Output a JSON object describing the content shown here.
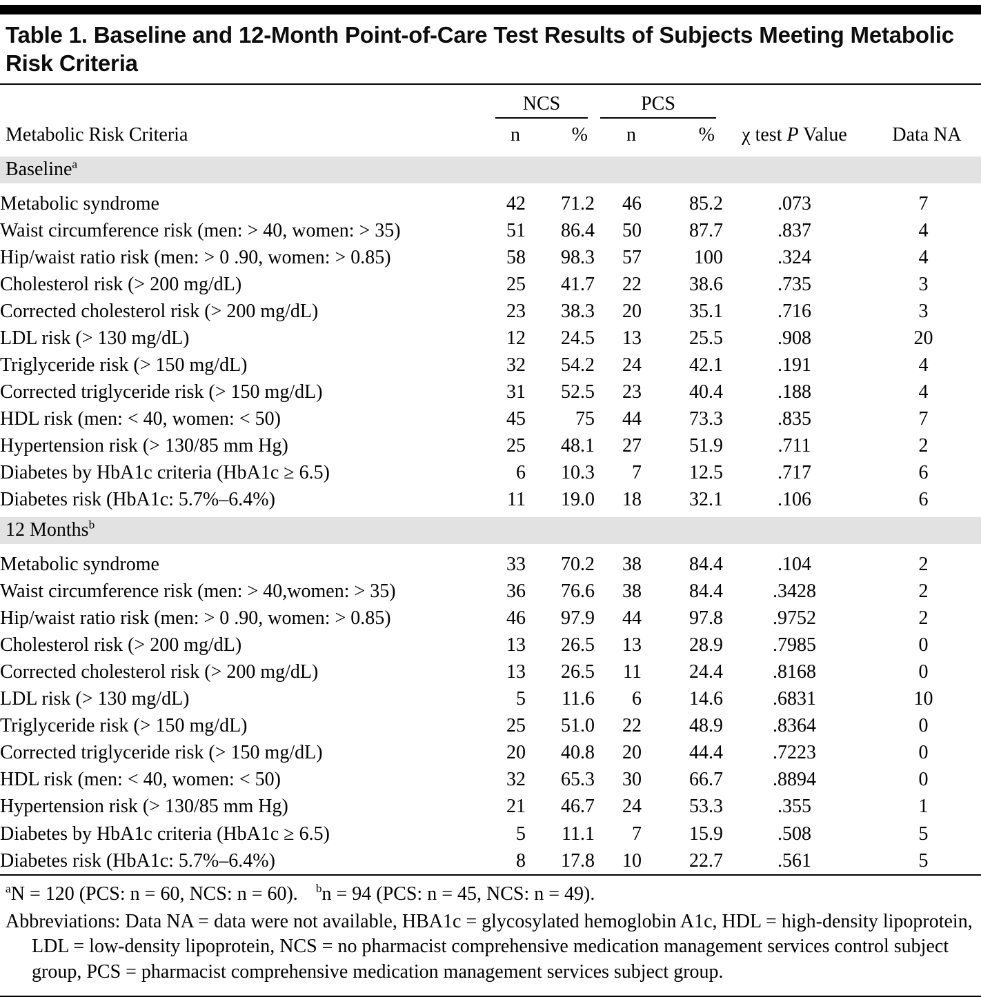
{
  "title": "Table 1. Baseline and 12-Month Point-of-Care Test Results of Subjects Meeting Metabolic Risk Criteria",
  "columns": {
    "criteria": "Metabolic Risk Criteria",
    "group1": "NCS",
    "group2": "PCS",
    "n": "n",
    "pct": "%",
    "pvalue_prefix": "χ test ",
    "pvalue_italic": "P",
    "pvalue_suffix": " Value",
    "data_na": "Data NA"
  },
  "sections": [
    {
      "label": "Baseline",
      "superscript": "a",
      "rows": [
        {
          "criteria": "Metabolic syndrome",
          "ncs_n": "42",
          "ncs_pct": "71.2",
          "pcs_n": "46",
          "pcs_pct": "85.2",
          "p": ".073",
          "na": "7"
        },
        {
          "criteria": "Waist circumference risk (men: > 40, women: > 35)",
          "ncs_n": "51",
          "ncs_pct": "86.4",
          "pcs_n": "50",
          "pcs_pct": "87.7",
          "p": ".837",
          "na": "4"
        },
        {
          "criteria": "Hip/waist ratio risk (men: > 0 .90, women: > 0.85)",
          "ncs_n": "58",
          "ncs_pct": "98.3",
          "pcs_n": "57",
          "pcs_pct": "100",
          "p": ".324",
          "na": "4"
        },
        {
          "criteria": "Cholesterol risk (> 200 mg/dL)",
          "ncs_n": "25",
          "ncs_pct": "41.7",
          "pcs_n": "22",
          "pcs_pct": "38.6",
          "p": ".735",
          "na": "3"
        },
        {
          "criteria": "Corrected cholesterol risk (> 200 mg/dL)",
          "ncs_n": "23",
          "ncs_pct": "38.3",
          "pcs_n": "20",
          "pcs_pct": "35.1",
          "p": ".716",
          "na": "3"
        },
        {
          "criteria": "LDL risk (> 130 mg/dL)",
          "ncs_n": "12",
          "ncs_pct": "24.5",
          "pcs_n": "13",
          "pcs_pct": "25.5",
          "p": ".908",
          "na": "20"
        },
        {
          "criteria": "Triglyceride risk (> 150 mg/dL)",
          "ncs_n": "32",
          "ncs_pct": "54.2",
          "pcs_n": "24",
          "pcs_pct": "42.1",
          "p": ".191",
          "na": "4"
        },
        {
          "criteria": "Corrected triglyceride risk (> 150 mg/dL)",
          "ncs_n": "31",
          "ncs_pct": "52.5",
          "pcs_n": "23",
          "pcs_pct": "40.4",
          "p": ".188",
          "na": "4"
        },
        {
          "criteria": "HDL risk (men: < 40, women: < 50)",
          "ncs_n": "45",
          "ncs_pct": "75",
          "pcs_n": "44",
          "pcs_pct": "73.3",
          "p": ".835",
          "na": "7"
        },
        {
          "criteria": "Hypertension risk (> 130/85 mm Hg)",
          "ncs_n": "25",
          "ncs_pct": "48.1",
          "pcs_n": "27",
          "pcs_pct": "51.9",
          "p": ".711",
          "na": "2"
        },
        {
          "criteria": "Diabetes by HbA1c criteria (HbA1c ≥ 6.5)",
          "ncs_n": "6",
          "ncs_pct": "10.3",
          "pcs_n": "7",
          "pcs_pct": "12.5",
          "p": ".717",
          "na": "6"
        },
        {
          "criteria": "Diabetes risk (HbA1c: 5.7%–6.4%)",
          "ncs_n": "11",
          "ncs_pct": "19.0",
          "pcs_n": "18",
          "pcs_pct": "32.1",
          "p": ".106",
          "na": "6"
        }
      ]
    },
    {
      "label": "12 Months",
      "superscript": "b",
      "rows": [
        {
          "criteria": "Metabolic syndrome",
          "ncs_n": "33",
          "ncs_pct": "70.2",
          "pcs_n": "38",
          "pcs_pct": "84.4",
          "p": ".104",
          "na": "2"
        },
        {
          "criteria": "Waist circumference risk (men: > 40,women: > 35)",
          "ncs_n": "36",
          "ncs_pct": "76.6",
          "pcs_n": "38",
          "pcs_pct": "84.4",
          "p": ".3428",
          "na": "2"
        },
        {
          "criteria": "Hip/waist ratio risk (men: > 0 .90, women: > 0.85)",
          "ncs_n": "46",
          "ncs_pct": "97.9",
          "pcs_n": "44",
          "pcs_pct": "97.8",
          "p": ".9752",
          "na": "2"
        },
        {
          "criteria": "Cholesterol risk (> 200 mg/dL)",
          "ncs_n": "13",
          "ncs_pct": "26.5",
          "pcs_n": "13",
          "pcs_pct": "28.9",
          "p": ".7985",
          "na": "0"
        },
        {
          "criteria": "Corrected cholesterol risk (> 200 mg/dL)",
          "ncs_n": "13",
          "ncs_pct": "26.5",
          "pcs_n": "11",
          "pcs_pct": "24.4",
          "p": ".8168",
          "na": "0"
        },
        {
          "criteria": "LDL risk (> 130 mg/dL)",
          "ncs_n": "5",
          "ncs_pct": "11.6",
          "pcs_n": "6",
          "pcs_pct": "14.6",
          "p": ".6831",
          "na": "10"
        },
        {
          "criteria": "Triglyceride risk (> 150 mg/dL)",
          "ncs_n": "25",
          "ncs_pct": "51.0",
          "pcs_n": "22",
          "pcs_pct": "48.9",
          "p": ".8364",
          "na": "0"
        },
        {
          "criteria": "Corrected triglyceride risk (> 150 mg/dL)",
          "ncs_n": "20",
          "ncs_pct": "40.8",
          "pcs_n": "20",
          "pcs_pct": "44.4",
          "p": ".7223",
          "na": "0"
        },
        {
          "criteria": "HDL risk (men: < 40, women: < 50)",
          "ncs_n": "32",
          "ncs_pct": "65.3",
          "pcs_n": "30",
          "pcs_pct": "66.7",
          "p": ".8894",
          "na": "0"
        },
        {
          "criteria": "Hypertension risk (> 130/85 mm Hg)",
          "ncs_n": "21",
          "ncs_pct": "46.7",
          "pcs_n": "24",
          "pcs_pct": "53.3",
          "p": ".355",
          "na": "1"
        },
        {
          "criteria": "Diabetes by HbA1c criteria (HbA1c ≥ 6.5)",
          "ncs_n": "5",
          "ncs_pct": "11.1",
          "pcs_n": "7",
          "pcs_pct": "15.9",
          "p": ".508",
          "na": "5"
        },
        {
          "criteria": "Diabetes risk (HbA1c: 5.7%–6.4%)",
          "ncs_n": "8",
          "ncs_pct": "17.8",
          "pcs_n": "10",
          "pcs_pct": "22.7",
          "p": ".561",
          "na": "5"
        }
      ]
    }
  ],
  "footnotes": {
    "a_sup": "a",
    "a_text": "N = 120 (PCS: n = 60, NCS: n = 60).",
    "b_sup": "b",
    "b_text": "n = 94 (PCS: n = 45, NCS: n = 49).",
    "abbreviations": "Abbreviations: Data NA = data were not available, HBA1c = glycosylated hemoglobin A1c, HDL = high-density lipoprotein, LDL = low-density lipoprotein, NCS = no pharmacist comprehensive medication management services control subject group, PCS = pharmacist comprehensive medication management services subject group."
  }
}
